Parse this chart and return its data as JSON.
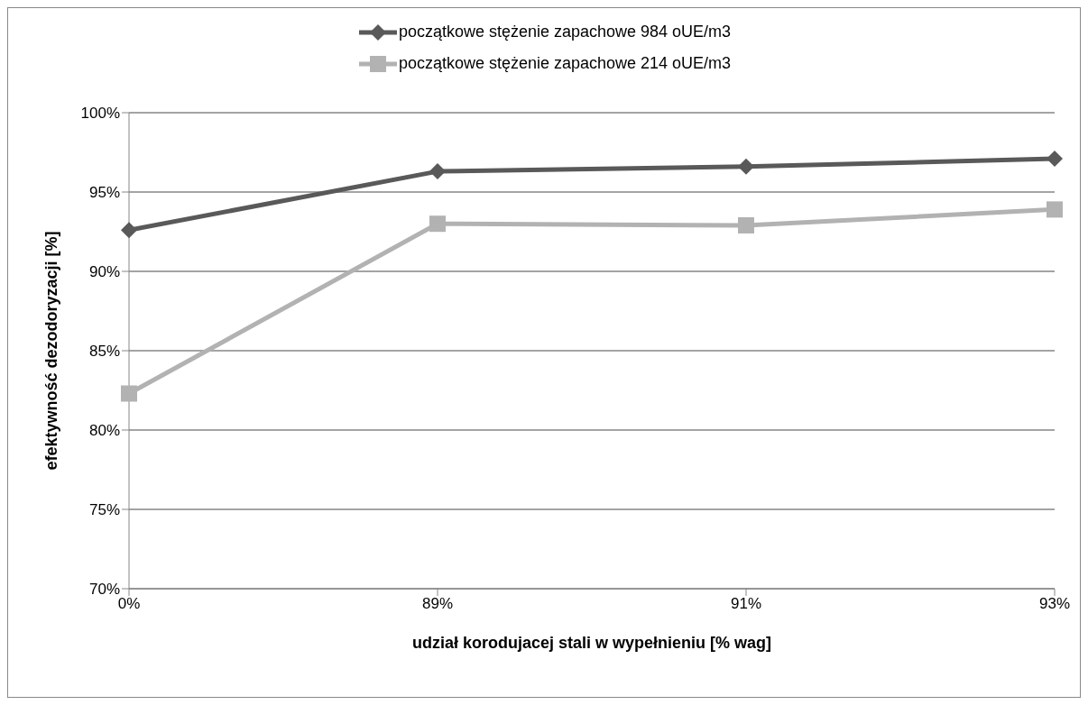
{
  "chart_data": {
    "type": "line",
    "xlabel": "udział korodujacej stali w wypełnieniu [% wag]",
    "ylabel": "efektywność dezodoryzacji [%]",
    "categories": [
      "0%",
      "89%",
      "91%",
      "93%"
    ],
    "series": [
      {
        "name": "początkowe stężenie zapachowe 984 oUE/m3",
        "color": "#595959",
        "marker": "diamond",
        "values": [
          92.6,
          96.3,
          96.6,
          97.1
        ]
      },
      {
        "name": "początkowe stężenie zapachowe 214 oUE/m3",
        "color": "#b2b2b2",
        "marker": "square",
        "values": [
          82.3,
          93.0,
          92.9,
          93.9
        ]
      }
    ],
    "ylim": [
      70,
      100
    ],
    "yticks": [
      {
        "value": 70,
        "label": "70%"
      },
      {
        "value": 75,
        "label": "75%"
      },
      {
        "value": 80,
        "label": "80%"
      },
      {
        "value": 85,
        "label": "85%"
      },
      {
        "value": 90,
        "label": "90%"
      },
      {
        "value": 95,
        "label": "95%"
      },
      {
        "value": 100,
        "label": "100%"
      }
    ],
    "grid": "y",
    "legend": "top",
    "line_style": "solid"
  }
}
